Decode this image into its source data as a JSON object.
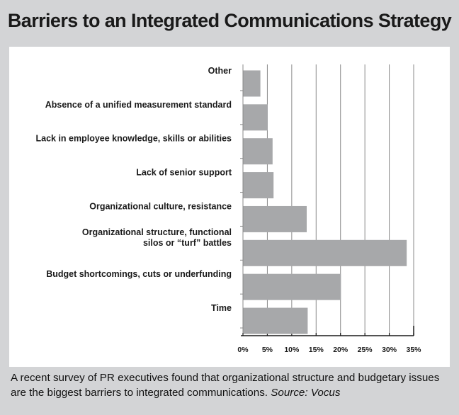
{
  "title": "Barriers to an Integrated Communications Strategy",
  "caption": {
    "text": "A recent survey of PR executives found that organizational structure and budgetary issues are the biggest barriers to integrated communications.",
    "source": "Source: Vocus"
  },
  "colors": {
    "background": "#d3d4d6",
    "panel": "#ffffff",
    "bar": "#a7a8aa",
    "grid": "#8a8a8a",
    "text": "#1a1a1a"
  },
  "chart_data": {
    "type": "bar",
    "orientation": "horizontal",
    "categories": [
      [
        "Other"
      ],
      [
        "Absence of a unified measurement standard"
      ],
      [
        "Lack in employee knowledge, skills or abilities"
      ],
      [
        "Lack of senior support"
      ],
      [
        "Organizational culture, resistance"
      ],
      [
        "Organizational structure, functional",
        "silos or “turf” battles"
      ],
      [
        "Budget shortcomings, cuts or underfunding"
      ],
      [
        "Time"
      ]
    ],
    "values": [
      3.5,
      5,
      6,
      6.2,
      13,
      33.5,
      20,
      13.2
    ],
    "value_unit": "%",
    "xlim": [
      0,
      35
    ],
    "x_ticks": [
      "0%",
      "5%",
      "10%",
      "15%",
      "20%",
      "25%",
      "30%",
      "35%"
    ],
    "grid": true,
    "legend": "none"
  }
}
